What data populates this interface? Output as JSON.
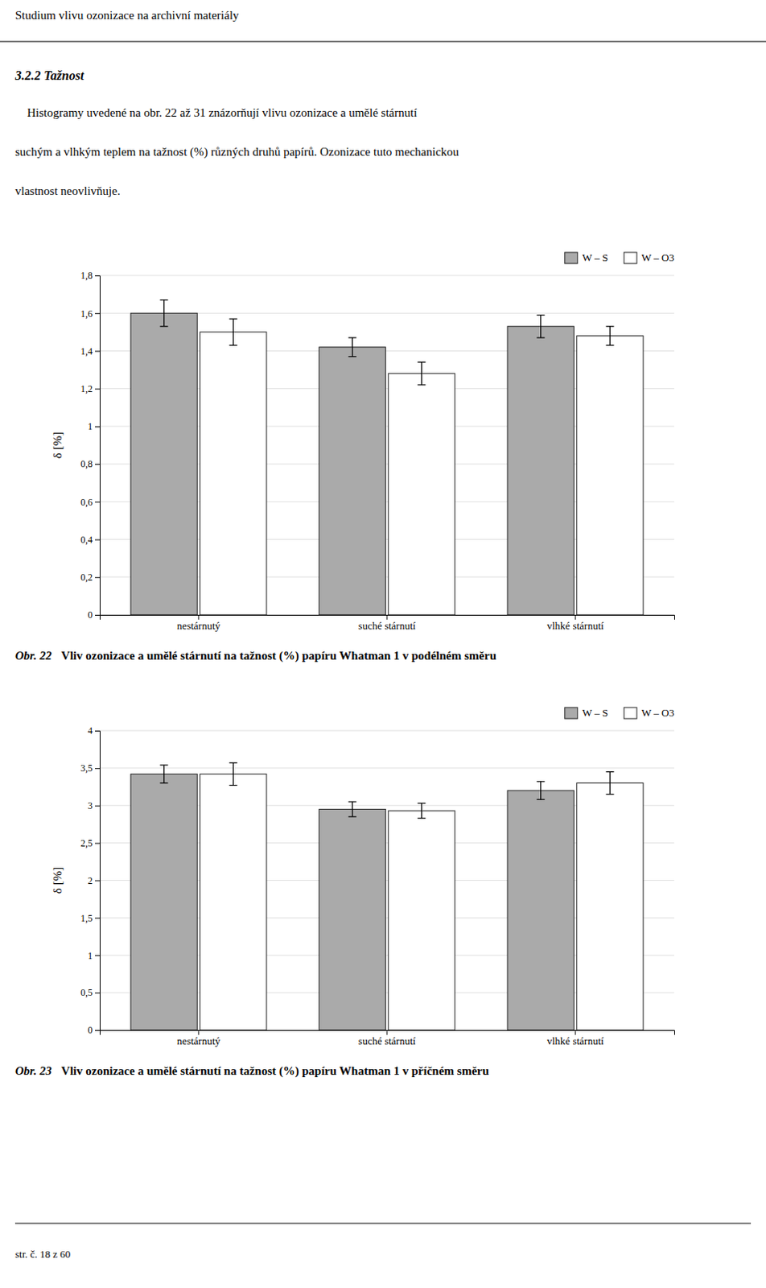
{
  "page_title": "Studium vlivu ozonizace na archivní materiály",
  "section_title": "3.2.2 Tažnost",
  "paragraph_lines": [
    "    Histogramy uvedené na obr. 22 až 31 znázorňují vlivu ozonizace a umělé stárnutí",
    "suchým a vlhkým teplem na tažnost (%) různých druhů papírů. Ozonizace tuto mechanickou",
    "vlastnost neovlivňuje."
  ],
  "footer": "str. č. 18 z 60",
  "chart_data": [
    {
      "type": "bar",
      "title": "Obr. 22",
      "subtitle": "Vliv ozonizace a umělé stárnutí na tažnost (%) papíru Whatman 1 v podélném směru",
      "categories": [
        "nestárnutý",
        "suché stárnutí",
        "vlhké stárnutí"
      ],
      "series": [
        {
          "name": "W – S",
          "color": "#aaaaaa",
          "values": [
            1.6,
            1.42,
            1.53
          ],
          "errors": [
            0.07,
            0.05,
            0.06
          ]
        },
        {
          "name": "W – O3",
          "color": "#ffffff",
          "values": [
            1.5,
            1.28,
            1.48
          ],
          "errors": [
            0.07,
            0.06,
            0.05
          ]
        }
      ],
      "ylabel": "δ [%]",
      "ylim": [
        0,
        1.8
      ],
      "yticks": [
        0,
        {
          "value": 0.2,
          "label": "0,2"
        },
        {
          "value": 0.4,
          "label": "0,4"
        },
        {
          "value": 0.6,
          "label": "0,6"
        },
        {
          "value": 0.8,
          "label": "0,8"
        },
        1,
        {
          "value": 1.2,
          "label": "1,2"
        },
        {
          "value": 1.4,
          "label": "1,4"
        },
        {
          "value": 1.6,
          "label": "1,6"
        },
        {
          "value": 1.8,
          "label": "1,8"
        }
      ],
      "grid": true,
      "legend": "top-right"
    },
    {
      "type": "bar",
      "title": "Obr. 23",
      "subtitle": "Vliv ozonizace a umělé stárnutí na tažnost (%) papíru Whatman 1 v příčném směru",
      "categories": [
        "nestárnutý",
        "suché stárnutí",
        "vlhké stárnutí"
      ],
      "series": [
        {
          "name": "W – S",
          "color": "#aaaaaa",
          "values": [
            3.42,
            2.95,
            3.2
          ],
          "errors": [
            0.12,
            0.1,
            0.12
          ]
        },
        {
          "name": "W – O3",
          "color": "#ffffff",
          "values": [
            3.42,
            2.93,
            3.3
          ],
          "errors": [
            0.15,
            0.1,
            0.15
          ]
        }
      ],
      "ylabel": "δ [%]",
      "ylim": [
        0,
        4
      ],
      "yticks": [
        0,
        {
          "value": 0.5,
          "label": "0,5"
        },
        1,
        {
          "value": 1.5,
          "label": "1,5"
        },
        2,
        {
          "value": 2.5,
          "label": "2,5"
        },
        3,
        {
          "value": 3.5,
          "label": "3,5"
        },
        4
      ],
      "grid": true,
      "legend": "top-right"
    }
  ]
}
